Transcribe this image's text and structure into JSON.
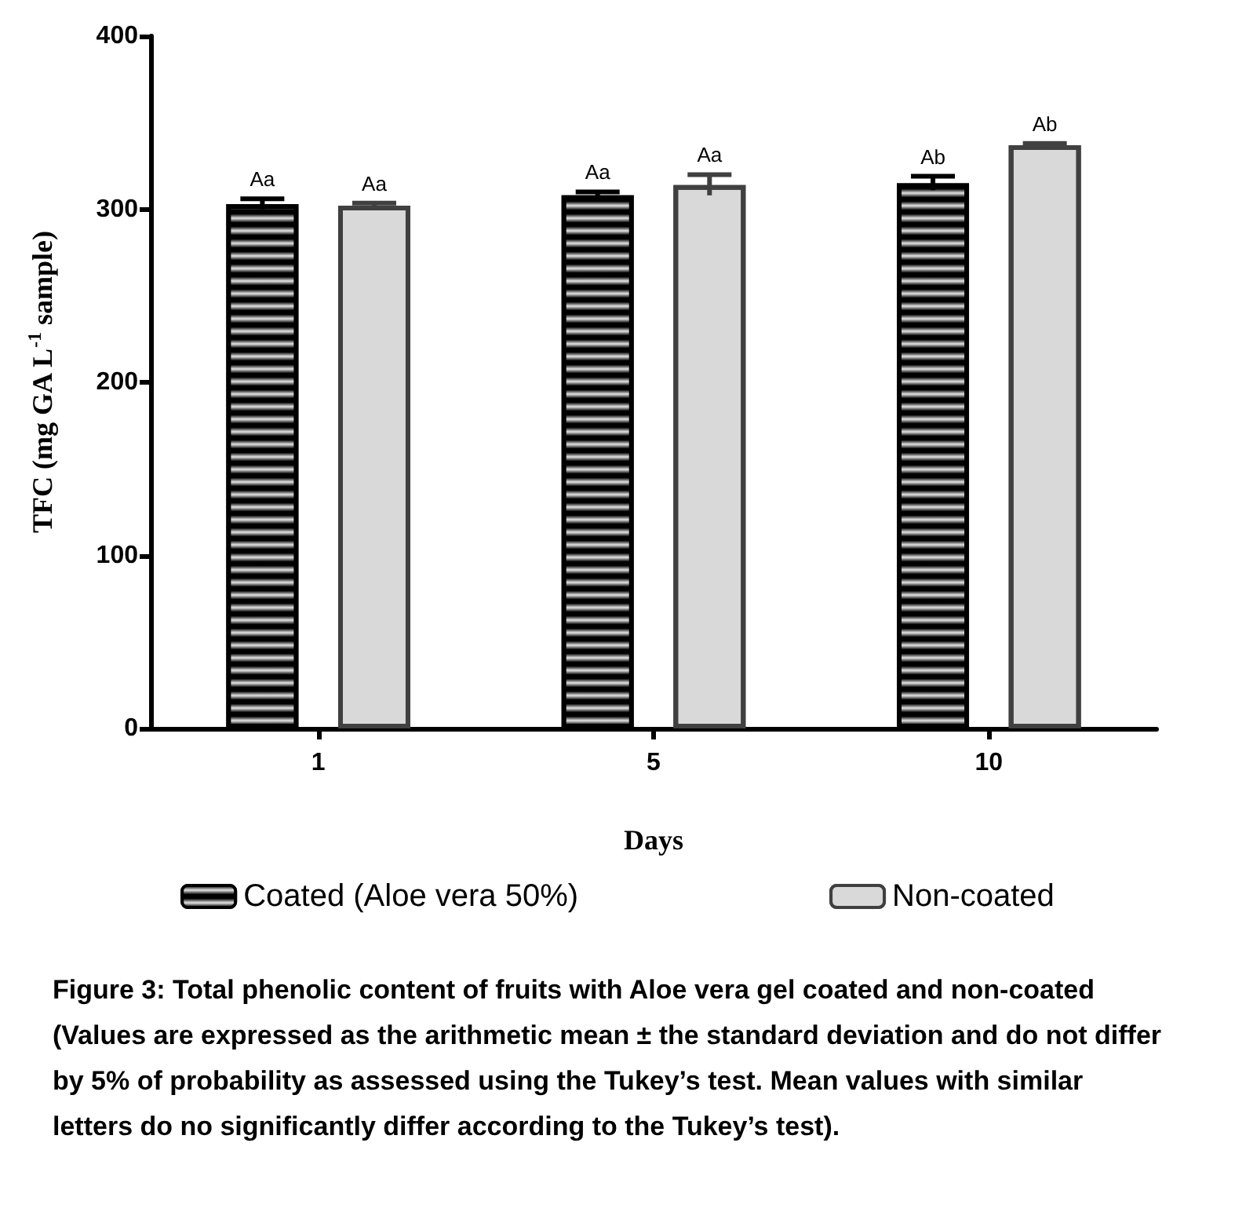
{
  "chart_data": {
    "type": "bar",
    "xlabel": "Days",
    "ylabel": "TFC (mg GA L$^{-1}$ sample)",
    "categories": [
      "1",
      "5",
      "10"
    ],
    "series": [
      {
        "name": "Coated (Aloe vera 50%)",
        "color": "#000000",
        "values": [
          303,
          308,
          315
        ],
        "errors": [
          3,
          2,
          4
        ],
        "value_labels": [
          "Aa",
          "Aa",
          "Ab"
        ]
      },
      {
        "name": "Non-coated",
        "color": "#d9d9d9",
        "values": [
          302,
          314,
          337
        ],
        "errors": [
          1.5,
          6,
          1
        ],
        "value_labels": [
          "Aa",
          "Aa",
          "Ab"
        ]
      }
    ],
    "ylim": [
      0,
      400
    ],
    "yticks": [
      0,
      100,
      200,
      300,
      400
    ],
    "grid": false,
    "legend": "bottom",
    "annotations": [
      "Figure 3: Total phenolic content of fruits with Aloe vera gel coated and non-coated (Values are expressed as the arithmetic mean ± the standard deviation and do not differ by 5% of probability as assessed using the Tukey’s test. Mean values with similar letters do no significantly differ according to the Tukey’s test)."
    ]
  }
}
